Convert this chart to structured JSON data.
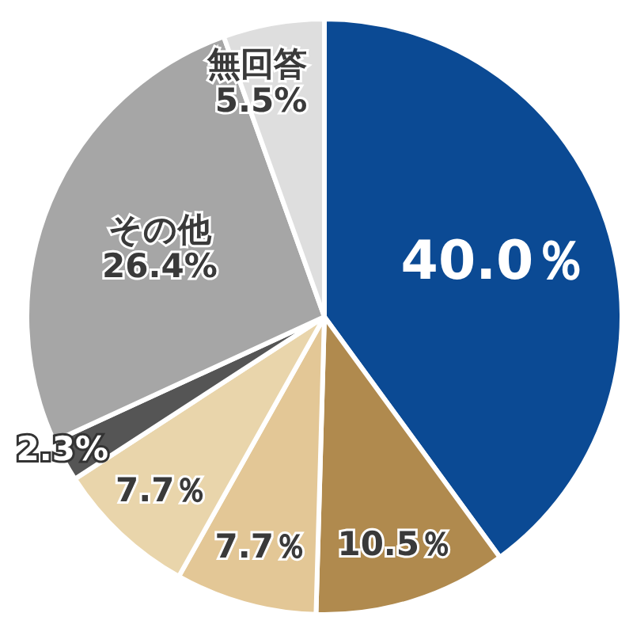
{
  "chart_data": {
    "type": "pie",
    "categories": [
      null,
      null,
      null,
      null,
      null,
      "その他",
      "無回答"
    ],
    "values": [
      40.0,
      10.5,
      7.7,
      7.7,
      2.3,
      26.4,
      5.5
    ],
    "colors": [
      "#0b4a94",
      "#b08a4e",
      "#e3c796",
      "#e9d5ab",
      "#555555",
      "#a6a6a6",
      "#dedede"
    ],
    "value_labels": [
      "40.0％",
      "10.5％",
      "7.7％",
      "7.7％",
      "2.3%",
      "26.4%",
      "5.5%"
    ]
  }
}
